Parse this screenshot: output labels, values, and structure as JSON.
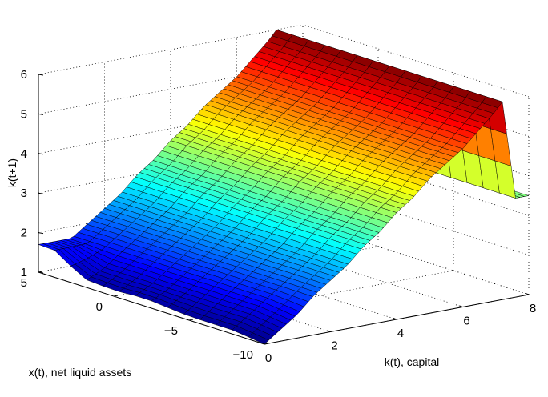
{
  "chart_data": {
    "type": "surface",
    "title": "",
    "xlabel": "k(t), capital",
    "ylabel": "x(t), net liquid assets",
    "zlabel": "k(t+1)",
    "xlim": [
      0,
      8
    ],
    "ylim": [
      -10,
      5
    ],
    "zlim": [
      1,
      6
    ],
    "xticks": [
      "0",
      "2",
      "4",
      "6",
      "8"
    ],
    "yticks": [
      "5",
      "0",
      "−5",
      "−10"
    ],
    "zticks": [
      "1",
      "2",
      "3",
      "4",
      "5",
      "6"
    ],
    "colormap": "jet",
    "grid": true,
    "surface_description": "k(t+1) rises linearly with k(t) from about 1.1 at k(t)=0 to 6 at k(t)=7.2, drops to about 3.5 beyond, with a flat region near x(t)=5 and a slight dip at low x(t)",
    "k_samples": [
      0,
      0.5,
      1,
      1.5,
      2,
      2.5,
      3,
      3.5,
      4,
      4.5,
      5,
      5.5,
      6,
      6.5,
      7,
      7.2,
      7.6,
      8
    ],
    "x_samples": [
      -10,
      -8,
      -5,
      -2,
      0,
      2,
      4,
      5
    ],
    "z_values": [
      [
        1.0,
        1.1,
        1.1,
        1.2,
        1.15,
        1.2,
        1.7,
        1.7
      ],
      [
        1.3,
        1.4,
        1.4,
        1.4,
        1.4,
        1.4,
        1.7,
        1.7
      ],
      [
        1.6,
        1.7,
        1.7,
        1.7,
        1.7,
        1.7,
        1.7,
        1.7
      ],
      [
        2.0,
        2.0,
        2.0,
        2.0,
        2.0,
        2.0,
        2.0,
        2.0
      ],
      [
        2.3,
        2.3,
        2.3,
        2.3,
        2.3,
        2.3,
        2.3,
        2.3
      ],
      [
        2.6,
        2.6,
        2.6,
        2.6,
        2.6,
        2.6,
        2.6,
        2.6
      ],
      [
        3.0,
        3.0,
        3.0,
        3.0,
        3.0,
        3.0,
        3.0,
        3.0
      ],
      [
        3.3,
        3.3,
        3.3,
        3.3,
        3.3,
        3.3,
        3.3,
        3.3
      ],
      [
        3.7,
        3.7,
        3.7,
        3.7,
        3.7,
        3.7,
        3.7,
        3.7
      ],
      [
        4.0,
        4.0,
        4.0,
        4.0,
        4.0,
        4.0,
        4.0,
        4.0
      ],
      [
        4.4,
        4.4,
        4.4,
        4.4,
        4.4,
        4.4,
        4.4,
        4.4
      ],
      [
        4.7,
        4.7,
        4.7,
        4.7,
        4.7,
        4.7,
        4.7,
        4.7
      ],
      [
        5.0,
        5.0,
        5.0,
        5.0,
        5.0,
        5.0,
        5.0,
        5.0
      ],
      [
        5.4,
        5.4,
        5.4,
        5.4,
        5.4,
        5.4,
        5.4,
        5.4
      ],
      [
        5.8,
        5.8,
        5.8,
        5.8,
        5.8,
        5.8,
        5.8,
        5.8
      ],
      [
        6.0,
        6.0,
        6.0,
        6.0,
        6.0,
        6.0,
        6.0,
        6.0
      ],
      [
        3.5,
        3.5,
        3.5,
        3.5,
        3.5,
        3.5,
        3.5,
        3.5
      ],
      [
        3.5,
        3.5,
        3.5,
        3.5,
        3.5,
        3.5,
        3.5,
        3.5
      ]
    ]
  }
}
